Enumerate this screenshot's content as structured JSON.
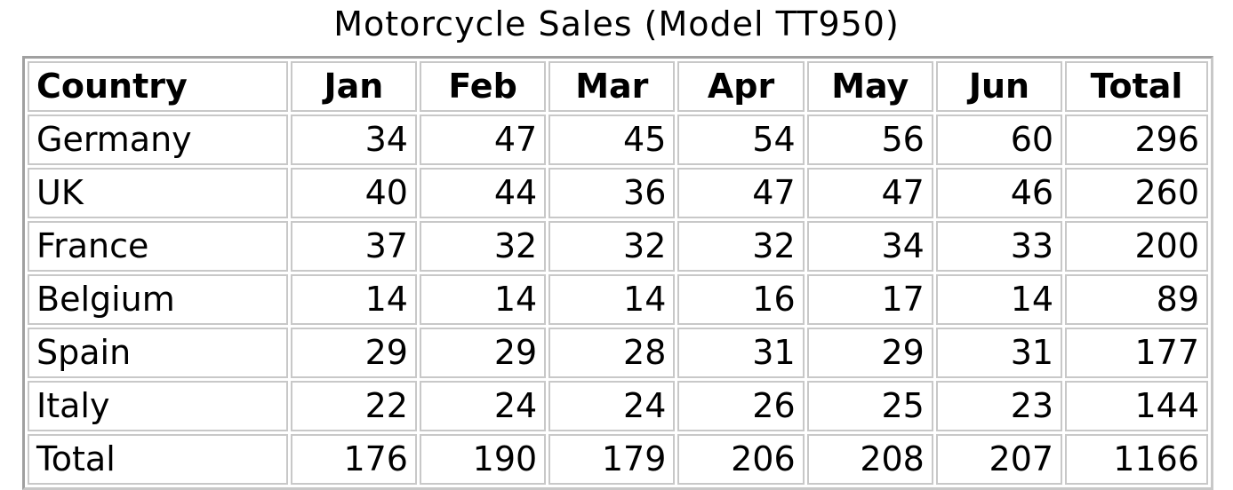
{
  "chart_data": {
    "type": "table",
    "title": "Motorcycle Sales (Model TT950)",
    "columns": [
      "Country",
      "Jan",
      "Feb",
      "Mar",
      "Apr",
      "May",
      "Jun",
      "Total"
    ],
    "rows": [
      [
        "Germany",
        "34",
        "47",
        "45",
        "54",
        "56",
        "60",
        "296"
      ],
      [
        "UK",
        "40",
        "44",
        "36",
        "47",
        "47",
        "46",
        "260"
      ],
      [
        "France",
        "37",
        "32",
        "32",
        "32",
        "34",
        "33",
        "200"
      ],
      [
        "Belgium",
        "14",
        "14",
        "14",
        "16",
        "17",
        "14",
        "89"
      ],
      [
        "Spain",
        "29",
        "29",
        "28",
        "31",
        "29",
        "31",
        "177"
      ],
      [
        "Italy",
        "22",
        "24",
        "24",
        "26",
        "25",
        "23",
        "144"
      ],
      [
        "Total",
        "176",
        "190",
        "179",
        "206",
        "208",
        "207",
        "1166"
      ]
    ]
  }
}
